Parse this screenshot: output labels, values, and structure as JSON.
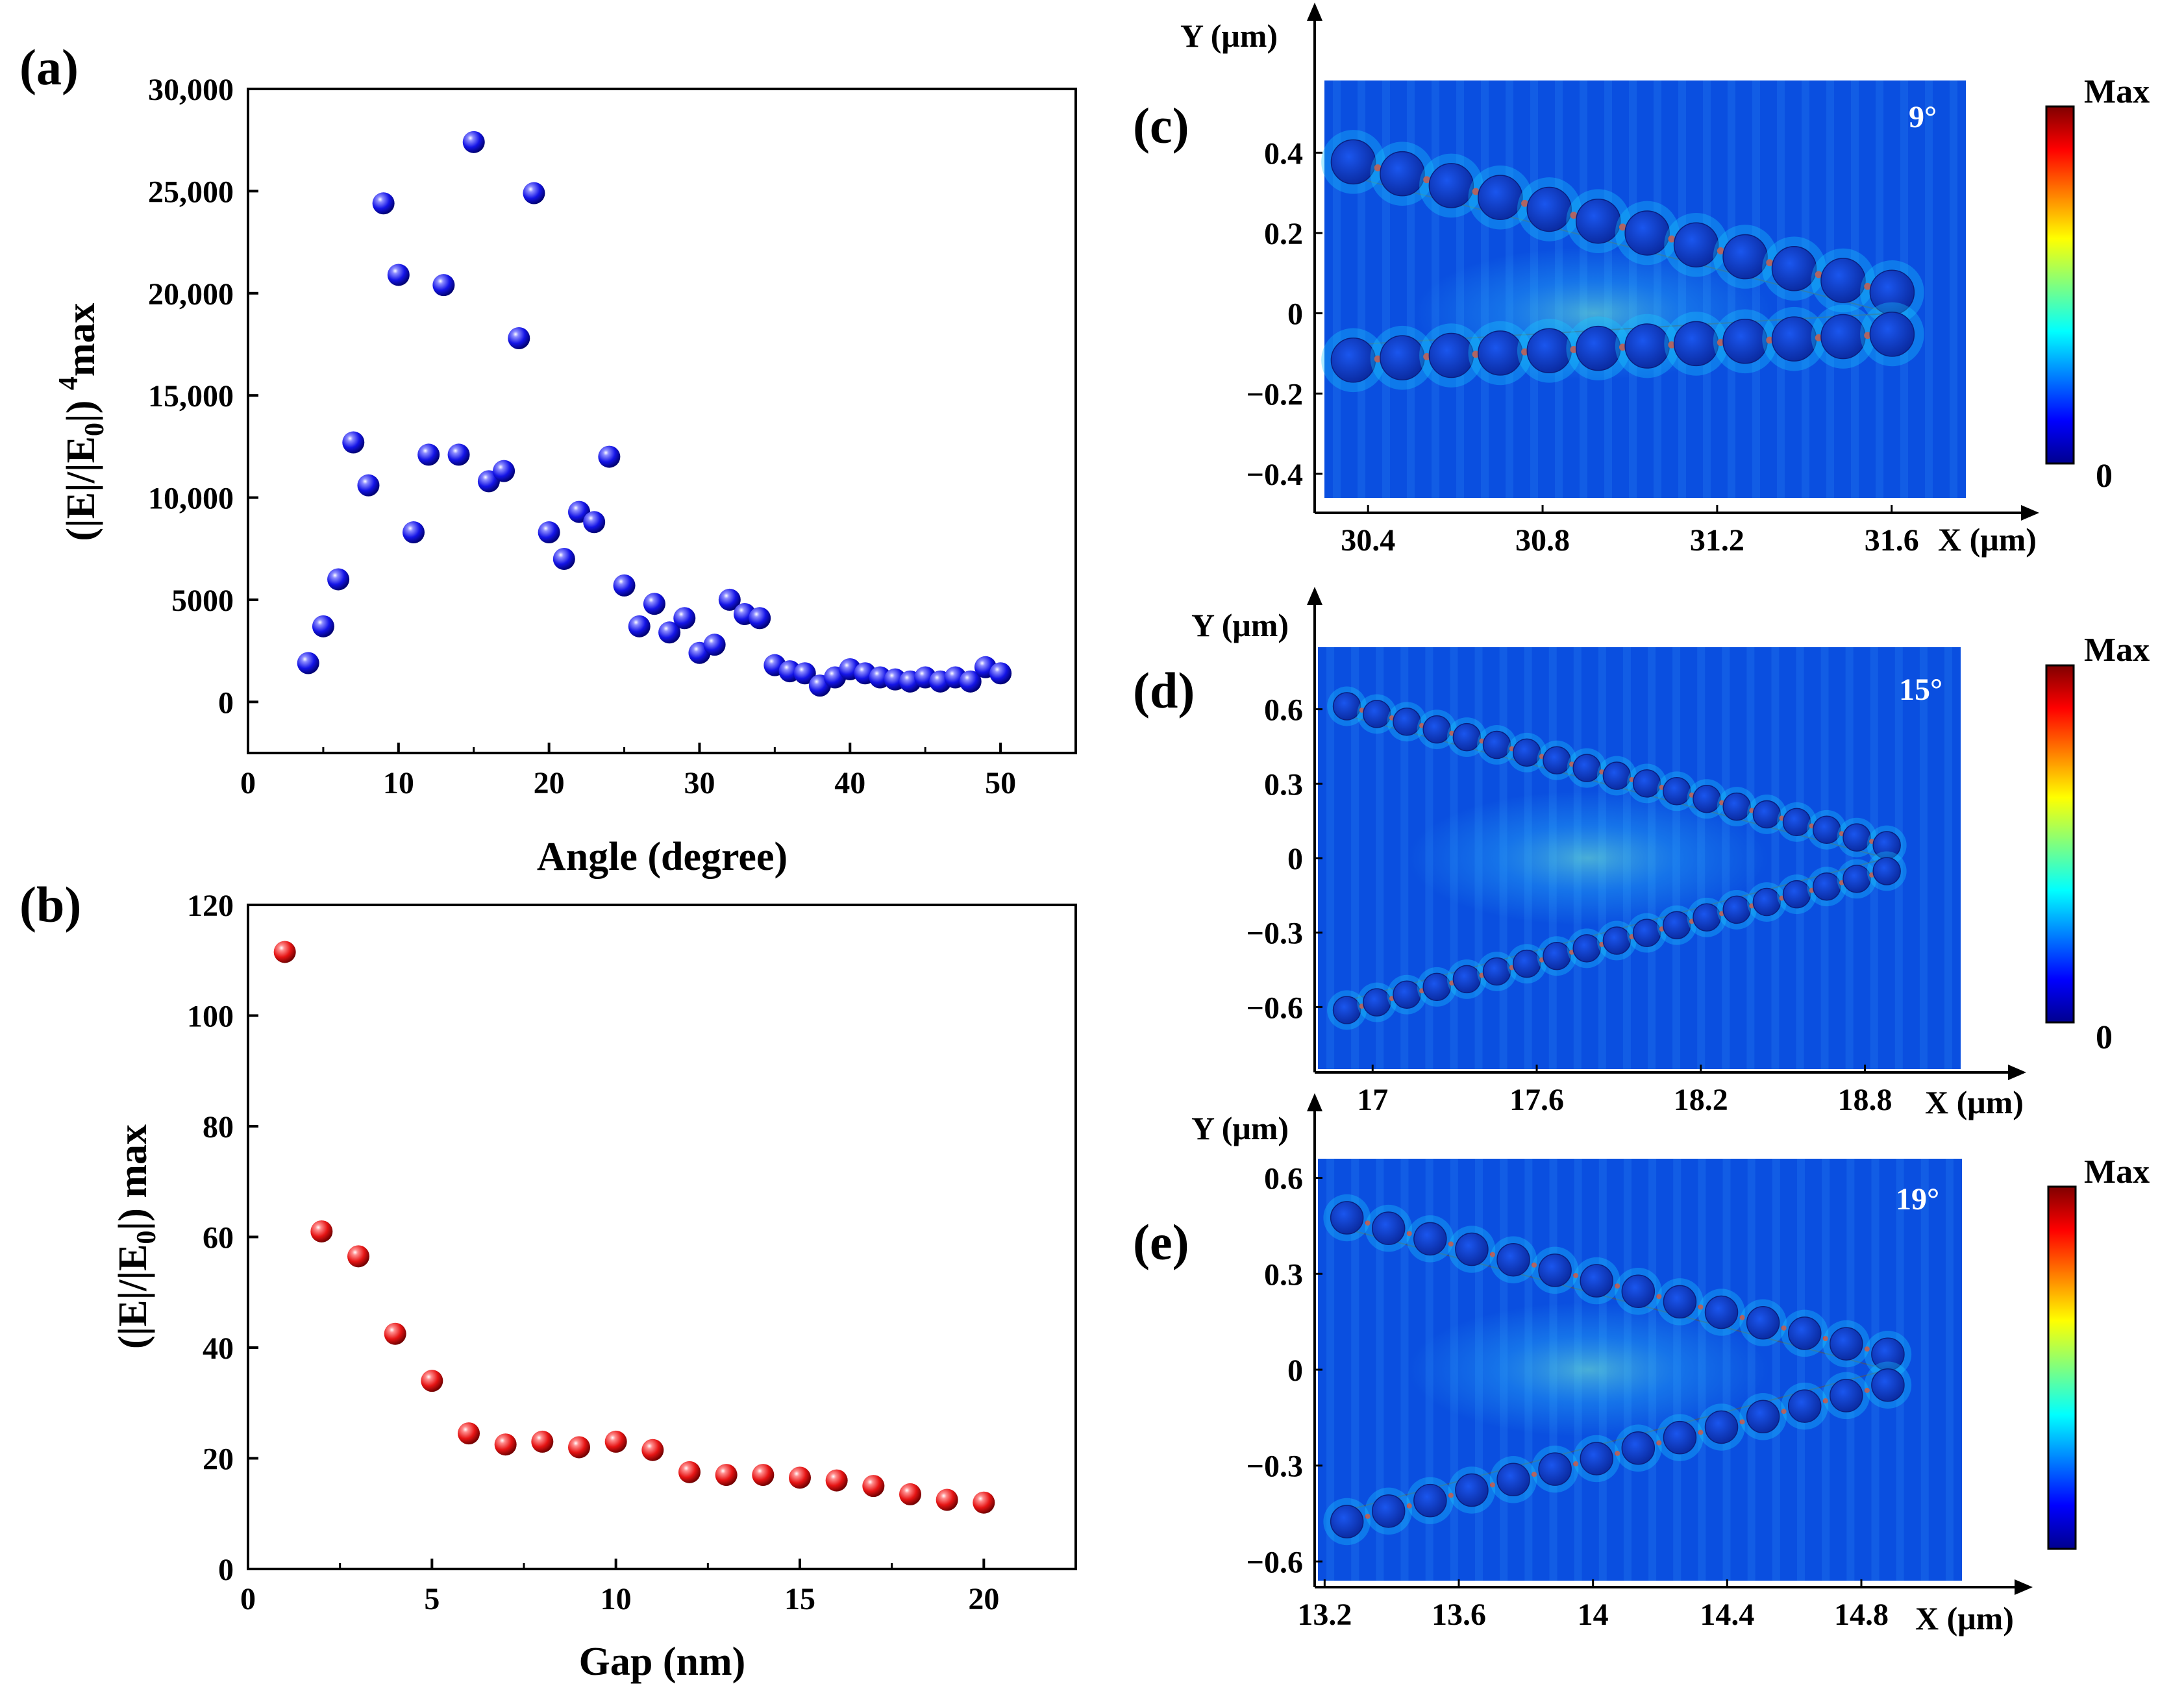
{
  "panel_labels": {
    "a": "(a)",
    "b": "(b)",
    "c": "(c)",
    "d": "(d)",
    "e": "(e)"
  },
  "colors": {
    "series_a": "#1414e6",
    "series_b": "#e61414",
    "axis": "#000000",
    "field_bg": "#0a4fe0"
  },
  "chart_data": [
    {
      "id": "a",
      "type": "scatter",
      "xlabel": "Angle (degree)",
      "ylabel": "(|E|/|E0|) 4max",
      "xlim": [
        0,
        55
      ],
      "ylim": [
        -2500,
        30000
      ],
      "xticks": [
        0,
        10,
        20,
        30,
        40,
        50
      ],
      "yticks": [
        0,
        5000,
        10000,
        15000,
        20000,
        25000,
        30000
      ],
      "ytick_labels": [
        "0",
        "5000",
        "10,000",
        "15,000",
        "20,000",
        "25,000",
        "30,000"
      ],
      "series": [
        {
          "x": [
            4,
            5,
            6,
            7,
            8,
            9,
            10,
            11,
            12,
            13,
            14,
            15,
            16,
            17,
            18,
            19,
            20,
            21,
            22,
            23,
            24,
            25,
            26,
            27,
            28,
            29,
            30,
            31,
            32,
            33,
            34,
            35,
            36,
            37,
            38,
            39,
            40,
            41,
            42,
            43,
            44,
            45,
            46,
            47,
            48,
            49,
            50
          ],
          "y": [
            1900,
            3700,
            6000,
            12700,
            10600,
            24400,
            20900,
            8300,
            12100,
            20400,
            12100,
            27400,
            10800,
            11300,
            17800,
            24900,
            8300,
            7000,
            9300,
            8800,
            12000,
            5700,
            3700,
            4800,
            3400,
            4100,
            2400,
            2800,
            5000,
            4300,
            4100,
            1800,
            1500,
            1400,
            800,
            1200,
            1600,
            1400,
            1200,
            1100,
            1000,
            1200,
            1000,
            1200,
            1000,
            1700,
            1400
          ]
        }
      ]
    },
    {
      "id": "b",
      "type": "scatter",
      "xlabel": "Gap (nm)",
      "ylabel": "(|E|/|E0|) max",
      "xlim": [
        0,
        22.5
      ],
      "ylim": [
        0,
        120
      ],
      "xticks": [
        0,
        5,
        10,
        15,
        20
      ],
      "yticks": [
        0,
        20,
        40,
        60,
        80,
        100,
        120
      ],
      "series": [
        {
          "x": [
            1,
            2,
            3,
            4,
            5,
            6,
            7,
            8,
            9,
            10,
            11,
            12,
            13,
            14,
            15,
            16,
            17,
            18,
            19,
            20
          ],
          "y": [
            111.5,
            61,
            56.5,
            42.5,
            34,
            24.5,
            22.5,
            23,
            22,
            23,
            21.5,
            17.5,
            17,
            17,
            16.5,
            16,
            15,
            13.5,
            12.5,
            12
          ]
        }
      ]
    },
    {
      "id": "c",
      "type": "heatmap",
      "angle_label": "9°",
      "xlabel": "X (μm)",
      "ylabel": "Y (μm)",
      "xlim": [
        30.3,
        31.77
      ],
      "ylim": [
        -0.46,
        0.58
      ],
      "xticks": [
        30.4,
        30.8,
        31.2,
        31.6
      ],
      "xtick_labels": [
        "30.4",
        "30.8",
        "31.2",
        "31.6"
      ],
      "yticks": [
        -0.4,
        -0.2,
        0,
        0.2,
        0.4
      ],
      "ytick_labels": [
        "−0.4",
        "−0.2",
        "0",
        "0.2",
        "0.4"
      ],
      "colorbar": {
        "max_label": "Max",
        "min_label": "0"
      }
    },
    {
      "id": "d",
      "type": "heatmap",
      "angle_label": "15°",
      "xlabel": "X (μm)",
      "ylabel": "Y (μm)",
      "xlim": [
        16.8,
        19.15
      ],
      "ylim": [
        -0.85,
        0.85
      ],
      "xticks": [
        17,
        17.6,
        18.2,
        18.8
      ],
      "xtick_labels": [
        "17",
        "17.6",
        "18.2",
        "18.8"
      ],
      "yticks": [
        -0.6,
        -0.3,
        0,
        0.3,
        0.6
      ],
      "ytick_labels": [
        "−0.6",
        "−0.3",
        "0",
        "0.3",
        "0.6"
      ],
      "colorbar": {
        "max_label": "Max",
        "min_label": "0"
      }
    },
    {
      "id": "e",
      "type": "heatmap",
      "angle_label": "19°",
      "xlabel": "X (μm)",
      "ylabel": "Y (μm)",
      "xlim": [
        13.18,
        15.1
      ],
      "ylim": [
        -0.66,
        0.66
      ],
      "xticks": [
        13.2,
        13.6,
        14,
        14.4,
        14.8
      ],
      "xtick_labels": [
        "13.2",
        "13.6",
        "14",
        "14.4",
        "14.8"
      ],
      "yticks": [
        -0.6,
        -0.3,
        0,
        0.3,
        0.6
      ],
      "ytick_labels": [
        "−0.6",
        "−0.3",
        "0",
        "0.3",
        "0.6"
      ],
      "colorbar": {
        "max_label": "Max"
      }
    }
  ]
}
